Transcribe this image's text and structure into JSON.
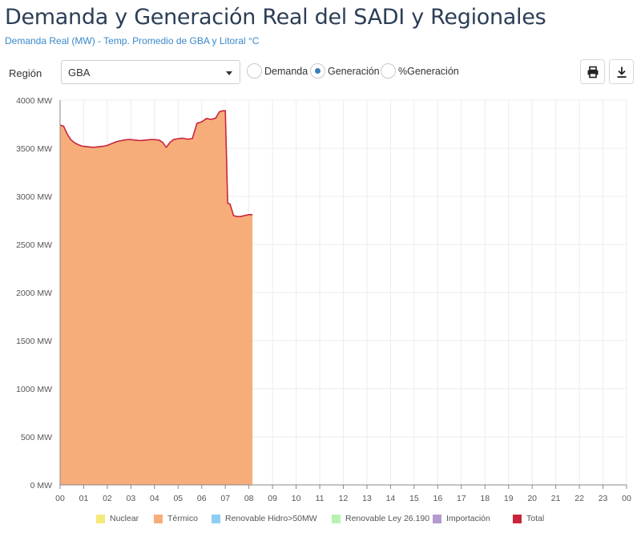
{
  "header": {
    "title": "Demanda y Generación Real del SADI y Regionales",
    "subtitle": "Demanda Real (MW) - Temp. Promedio de GBA y Litoral °C"
  },
  "controls": {
    "region_label": "Región",
    "region_value": "GBA",
    "radios": [
      {
        "label": "Demanda",
        "selected": false
      },
      {
        "label": "Generación",
        "selected": true
      },
      {
        "label": "%Generación",
        "selected": false
      }
    ],
    "print_icon": "print-icon",
    "download_icon": "download-icon"
  },
  "legend": [
    {
      "label": "Nuclear",
      "color": "#f6e97c"
    },
    {
      "label": "Térmico",
      "color": "#f6ad7a"
    },
    {
      "label": "Renovable Hidro>50MW",
      "color": "#8ecdf3"
    },
    {
      "label": "Renovable Ley 26.190",
      "color": "#b6f2b0"
    },
    {
      "label": "Importación",
      "color": "#b49ad0"
    },
    {
      "label": "Total",
      "color": "#c8253c"
    }
  ],
  "chart_data": {
    "type": "area",
    "title": "Demanda y Generación Real del SADI y Regionales",
    "xlabel": "",
    "ylabel": "MW",
    "x_ticks": [
      "00",
      "01",
      "02",
      "03",
      "04",
      "05",
      "06",
      "07",
      "08",
      "09",
      "10",
      "11",
      "12",
      "13",
      "14",
      "15",
      "16",
      "17",
      "18",
      "19",
      "20",
      "21",
      "22",
      "23",
      "00"
    ],
    "y_ticks": [
      "0 MW",
      "500 MW",
      "1000 MW",
      "1500 MW",
      "2000 MW",
      "2500 MW",
      "3000 MW",
      "3500 MW",
      "4000 MW"
    ],
    "xlim": [
      0,
      24
    ],
    "ylim": [
      0,
      4000
    ],
    "grid": true,
    "series": [
      {
        "name": "Nuclear",
        "color": "#f6e97c",
        "x": [],
        "values": []
      },
      {
        "name": "Térmico",
        "color": "#f6ad7a",
        "x": [
          0.0,
          0.15,
          0.3,
          0.45,
          0.6,
          0.75,
          0.9,
          1.0,
          1.2,
          1.4,
          1.6,
          1.8,
          2.0,
          2.2,
          2.4,
          2.5,
          2.7,
          2.85,
          3.0,
          3.2,
          3.4,
          3.6,
          3.8,
          4.0,
          4.2,
          4.35,
          4.5,
          4.65,
          4.8,
          5.0,
          5.2,
          5.4,
          5.6,
          5.8,
          6.0,
          6.2,
          6.4,
          6.6,
          6.75,
          6.9,
          7.0,
          7.1,
          7.2,
          7.35,
          7.5,
          7.65,
          7.8,
          8.0,
          8.15
        ],
        "values": [
          3740,
          3730,
          3650,
          3590,
          3560,
          3540,
          3525,
          3520,
          3515,
          3510,
          3515,
          3520,
          3530,
          3550,
          3570,
          3575,
          3585,
          3590,
          3590,
          3585,
          3580,
          3585,
          3590,
          3590,
          3585,
          3560,
          3510,
          3560,
          3590,
          3600,
          3605,
          3595,
          3600,
          3760,
          3775,
          3810,
          3800,
          3815,
          3880,
          3890,
          3890,
          2930,
          2920,
          2800,
          2790,
          2790,
          2800,
          2810,
          2810
        ]
      },
      {
        "name": "Renovable Hidro>50MW",
        "color": "#8ecdf3",
        "x": [],
        "values": []
      },
      {
        "name": "Renovable Ley 26.190",
        "color": "#b6f2b0",
        "x": [],
        "values": []
      },
      {
        "name": "Importación",
        "color": "#b49ad0",
        "x": [],
        "values": []
      },
      {
        "name": "Total",
        "color": "#c8253c",
        "x": [
          0.0,
          0.15,
          0.3,
          0.45,
          0.6,
          0.75,
          0.9,
          1.0,
          1.2,
          1.4,
          1.6,
          1.8,
          2.0,
          2.2,
          2.4,
          2.5,
          2.7,
          2.85,
          3.0,
          3.2,
          3.4,
          3.6,
          3.8,
          4.0,
          4.2,
          4.35,
          4.5,
          4.65,
          4.8,
          5.0,
          5.2,
          5.4,
          5.6,
          5.8,
          6.0,
          6.2,
          6.4,
          6.6,
          6.75,
          6.9,
          7.0,
          7.1,
          7.2,
          7.35,
          7.5,
          7.65,
          7.8,
          8.0,
          8.15
        ],
        "values": [
          3740,
          3730,
          3650,
          3590,
          3560,
          3540,
          3525,
          3520,
          3515,
          3510,
          3515,
          3520,
          3530,
          3550,
          3570,
          3575,
          3585,
          3590,
          3590,
          3585,
          3580,
          3585,
          3590,
          3590,
          3585,
          3560,
          3510,
          3560,
          3590,
          3600,
          3605,
          3595,
          3600,
          3760,
          3775,
          3810,
          3800,
          3815,
          3880,
          3890,
          3890,
          2930,
          2920,
          2800,
          2790,
          2790,
          2800,
          2810,
          2810
        ]
      }
    ]
  }
}
